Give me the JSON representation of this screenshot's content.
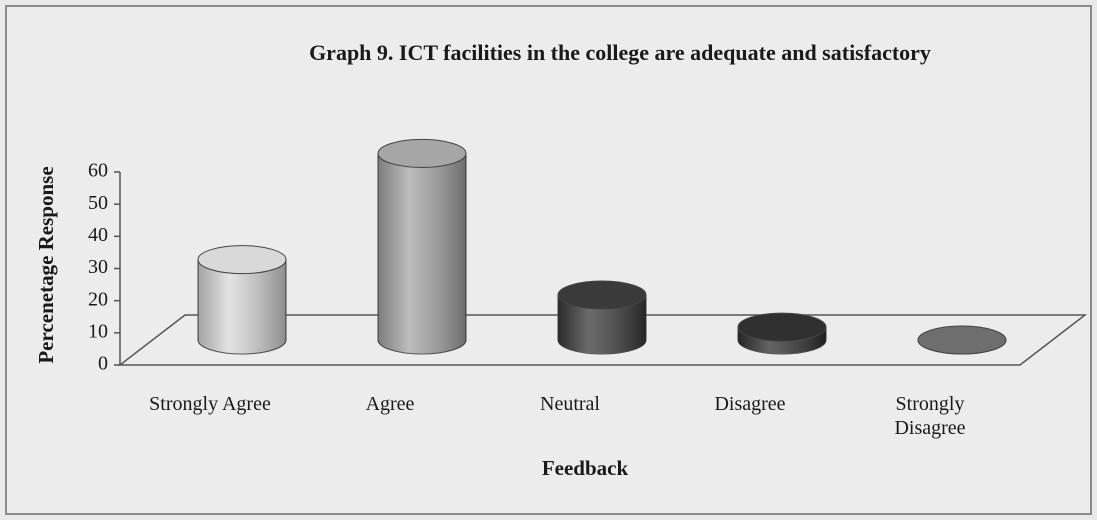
{
  "chart_data": {
    "type": "cylinder-bar",
    "title": "Graph 9. ICT facilities in the college are adequate and satisfactory",
    "x_label": "Feedback",
    "y_label": "Percenetage Response",
    "categories": [
      "Strongly Agree",
      "Agree",
      "Neutral",
      "Disagree",
      "Strongly Disagree"
    ],
    "values": [
      25,
      58,
      14,
      4,
      0
    ],
    "colors": [
      "#d9d9d9",
      "#a6a6a6",
      "#3a3a3a",
      "#303030",
      "#6e6e6e"
    ],
    "ylim": [
      0,
      60
    ],
    "yticks": [
      0,
      10,
      20,
      30,
      40,
      50,
      60
    ]
  }
}
